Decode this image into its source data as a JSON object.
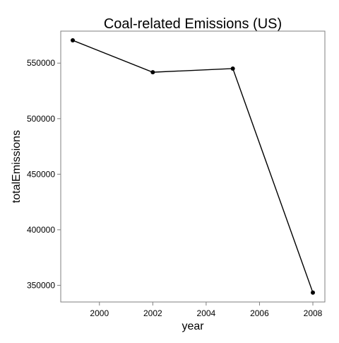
{
  "chart_data": {
    "type": "line",
    "title": "Coal-related Emissions (US)",
    "xlabel": "year",
    "ylabel": "totalEmissions",
    "x": [
      1999,
      2002,
      2005,
      2008
    ],
    "series": [
      {
        "values": [
          570500,
          541800,
          545100,
          343400
        ]
      }
    ],
    "xlim": [
      1998.55,
      2008.45
    ],
    "ylim": [
      335000,
      578800
    ],
    "xticks": [
      2000,
      2002,
      2004,
      2006,
      2008
    ],
    "yticks": [
      350000,
      400000,
      450000,
      500000,
      550000
    ],
    "xtick_labels": [
      "2000",
      "2002",
      "2004",
      "2006",
      "2008"
    ],
    "ytick_labels": [
      "350000",
      "400000",
      "450000",
      "500000",
      "550000"
    ],
    "grid": false,
    "legend": "none",
    "colors": {
      "line": "#000000",
      "point": "#000000",
      "panel_border": "#7f7f7f",
      "text": "#000000"
    }
  }
}
